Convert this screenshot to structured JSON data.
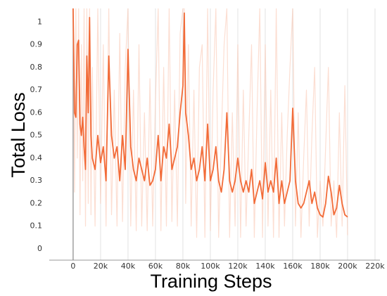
{
  "chart_data": {
    "type": "line",
    "y_label": "Total Loss",
    "x_label": "Training Steps",
    "xlim": [
      -17400,
      223600
    ],
    "ylim": [
      -0.05,
      1.06
    ],
    "xticks": [
      {
        "value": 0,
        "label": "0"
      },
      {
        "value": 20000,
        "label": "20k"
      },
      {
        "value": 40000,
        "label": "40k"
      },
      {
        "value": 60000,
        "label": "60k"
      },
      {
        "value": 80000,
        "label": "80k"
      },
      {
        "value": 100000,
        "label": "100k"
      },
      {
        "value": 120000,
        "label": "120k"
      },
      {
        "value": 140000,
        "label": "140k"
      },
      {
        "value": 160000,
        "label": "160k"
      },
      {
        "value": 180000,
        "label": "180k"
      },
      {
        "value": 200000,
        "label": "200k"
      },
      {
        "value": 220000,
        "label": "220k"
      }
    ],
    "yticks": [
      0,
      0.1,
      0.2,
      0.3,
      0.4,
      0.5,
      0.6,
      0.7,
      0.8,
      0.9,
      1
    ],
    "grid": "x",
    "series": [
      {
        "color": "#f9c3ad",
        "opacity": 0.55,
        "x": [
          0,
          1000,
          2000,
          3000,
          4000,
          5000,
          6000,
          7000,
          8000,
          9000,
          10000,
          11000,
          12000,
          13000,
          14000,
          16000,
          18000,
          20000,
          22000,
          24000,
          26000,
          28000,
          30000,
          32000,
          34000,
          36000,
          38000,
          40000,
          42000,
          44000,
          46000,
          48000,
          50000,
          52000,
          54000,
          56000,
          58000,
          60000,
          62000,
          64000,
          66000,
          68000,
          70000,
          72000,
          74000,
          76000,
          78000,
          80000,
          81000,
          82000,
          84000,
          86000,
          88000,
          90000,
          92000,
          94000,
          96000,
          98000,
          100000,
          102000,
          104000,
          106000,
          108000,
          110000,
          112000,
          114000,
          116000,
          118000,
          120000,
          122000,
          124000,
          126000,
          128000,
          130000,
          132000,
          134000,
          136000,
          138000,
          140000,
          142000,
          144000,
          146000,
          148000,
          150000,
          152000,
          154000,
          156000,
          158000,
          160000,
          162000,
          164000,
          166000,
          168000,
          170000,
          172000,
          174000,
          176000,
          178000,
          180000,
          182000,
          184000,
          186000,
          188000,
          190000,
          192000,
          194000,
          196000,
          198000,
          200000
        ],
        "values": [
          1.06,
          0.25,
          1.06,
          0.4,
          1.06,
          0.15,
          0.9,
          0.3,
          1.06,
          0.1,
          1.06,
          0.2,
          1.06,
          0.15,
          0.8,
          0.1,
          1.06,
          0.2,
          0.9,
          0.1,
          1.06,
          0.15,
          0.7,
          0.1,
          0.95,
          0.12,
          0.8,
          1.06,
          0.1,
          0.7,
          0.08,
          0.9,
          0.1,
          0.6,
          0.08,
          0.75,
          0.1,
          0.65,
          1.06,
          0.08,
          0.8,
          0.1,
          1.06,
          0.12,
          0.7,
          0.1,
          0.95,
          1.06,
          1.06,
          0.2,
          0.9,
          0.1,
          0.7,
          0.05,
          0.8,
          0.9,
          0.05,
          1.06,
          0.08,
          0.7,
          1.06,
          0.05,
          0.5,
          0.9,
          1.06,
          0.05,
          0.6,
          0.1,
          0.9,
          0.05,
          0.7,
          0.1,
          0.5,
          0.9,
          0.05,
          0.6,
          1.06,
          0.05,
          0.9,
          0.1,
          0.7,
          0.05,
          1.06,
          0.05,
          0.6,
          0.1,
          0.5,
          0.8,
          1.06,
          0.1,
          0.6,
          0.05,
          0.4,
          0.7,
          0.1,
          0.5,
          0.8,
          0.05,
          0.3,
          0.1,
          0.45,
          0.8,
          0.1,
          0.3,
          0.05,
          0.6,
          0.1,
          0.72,
          0.06
        ]
      },
      {
        "color": "#f26b38",
        "opacity": 1,
        "x": [
          0,
          1000,
          2000,
          3000,
          4000,
          5000,
          6000,
          7000,
          8000,
          9000,
          10000,
          11000,
          12000,
          13000,
          14000,
          16000,
          18000,
          20000,
          22000,
          24000,
          26000,
          28000,
          30000,
          32000,
          34000,
          36000,
          38000,
          40000,
          42000,
          44000,
          46000,
          48000,
          50000,
          52000,
          54000,
          56000,
          58000,
          60000,
          62000,
          64000,
          66000,
          68000,
          70000,
          72000,
          74000,
          76000,
          78000,
          80000,
          81000,
          82000,
          84000,
          86000,
          88000,
          90000,
          92000,
          94000,
          96000,
          98000,
          100000,
          102000,
          104000,
          106000,
          108000,
          110000,
          112000,
          114000,
          116000,
          118000,
          120000,
          122000,
          124000,
          126000,
          128000,
          130000,
          132000,
          134000,
          136000,
          138000,
          140000,
          142000,
          144000,
          146000,
          148000,
          150000,
          152000,
          154000,
          156000,
          158000,
          160000,
          162000,
          164000,
          166000,
          168000,
          170000,
          172000,
          174000,
          176000,
          178000,
          180000,
          182000,
          184000,
          186000,
          188000,
          190000,
          192000,
          194000,
          196000,
          198000,
          200000
        ],
        "values": [
          1.06,
          0.6,
          0.58,
          0.9,
          0.92,
          0.55,
          0.5,
          0.58,
          0.45,
          0.35,
          0.85,
          0.6,
          1.02,
          0.5,
          0.4,
          0.35,
          0.5,
          0.38,
          0.45,
          0.3,
          0.85,
          0.5,
          0.4,
          0.45,
          0.3,
          0.5,
          0.35,
          0.88,
          0.45,
          0.35,
          0.3,
          0.4,
          0.35,
          0.3,
          0.4,
          0.28,
          0.3,
          0.35,
          0.5,
          0.3,
          0.45,
          0.4,
          0.55,
          0.35,
          0.4,
          0.45,
          0.6,
          0.72,
          1.04,
          0.6,
          0.5,
          0.35,
          0.4,
          0.3,
          0.35,
          0.45,
          0.3,
          0.55,
          0.3,
          0.35,
          0.45,
          0.3,
          0.25,
          0.35,
          0.6,
          0.3,
          0.25,
          0.3,
          0.4,
          0.3,
          0.25,
          0.3,
          0.25,
          0.35,
          0.2,
          0.25,
          0.3,
          0.22,
          0.38,
          0.25,
          0.3,
          0.25,
          0.4,
          0.2,
          0.3,
          0.2,
          0.25,
          0.3,
          0.62,
          0.3,
          0.2,
          0.18,
          0.2,
          0.25,
          0.3,
          0.2,
          0.25,
          0.18,
          0.15,
          0.14,
          0.2,
          0.32,
          0.25,
          0.15,
          0.18,
          0.28,
          0.2,
          0.15,
          0.14
        ]
      }
    ]
  }
}
